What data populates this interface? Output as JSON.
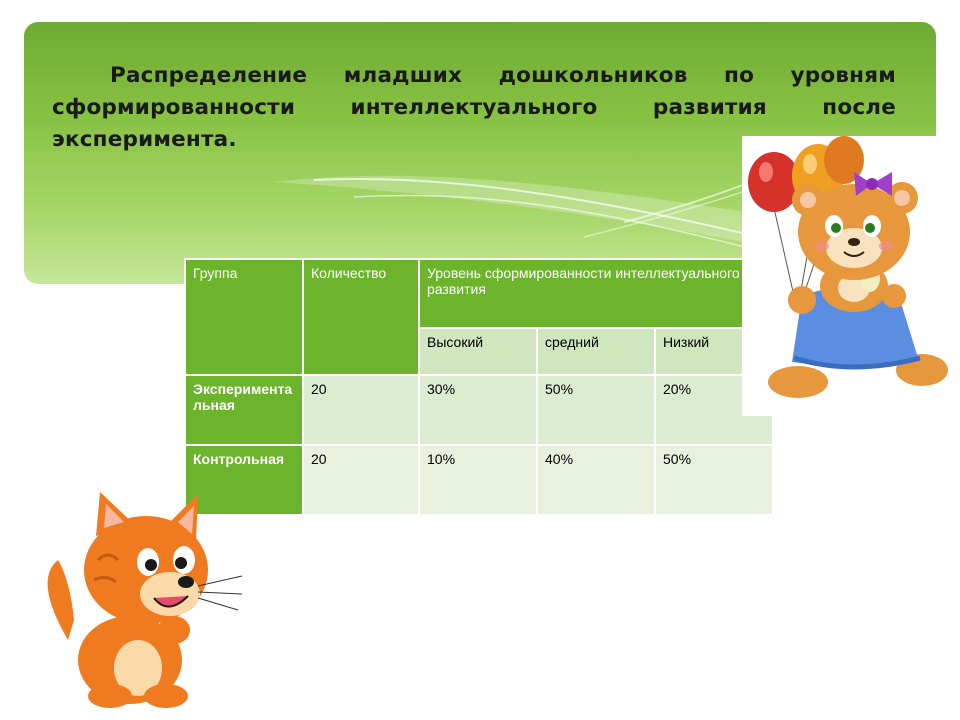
{
  "slide": {
    "title": "Распределение младших дошкольников по уровням сформированности  интеллектуального развития после эксперимента."
  },
  "table": {
    "headers": {
      "group": "Группа",
      "count": "Количество",
      "level": "Уровень сформированности интеллектуального развития",
      "high": "Высокий",
      "medium": "средний",
      "low": "Низкий"
    },
    "rows": [
      {
        "group": "Экспериментальная",
        "count": "20",
        "high": "30%",
        "medium": "50%",
        "low": "20%"
      },
      {
        "group": "Контрольная",
        "count": "20",
        "high": "10%",
        "medium": "40%",
        "low": "50%"
      }
    ]
  },
  "illustrations": {
    "bear": "bear-with-balloons",
    "cat": "orange-kitten"
  },
  "colors": {
    "header_green": "#6bb42c",
    "banner_green": "#86c142",
    "cell_light": "#dcecd0"
  }
}
